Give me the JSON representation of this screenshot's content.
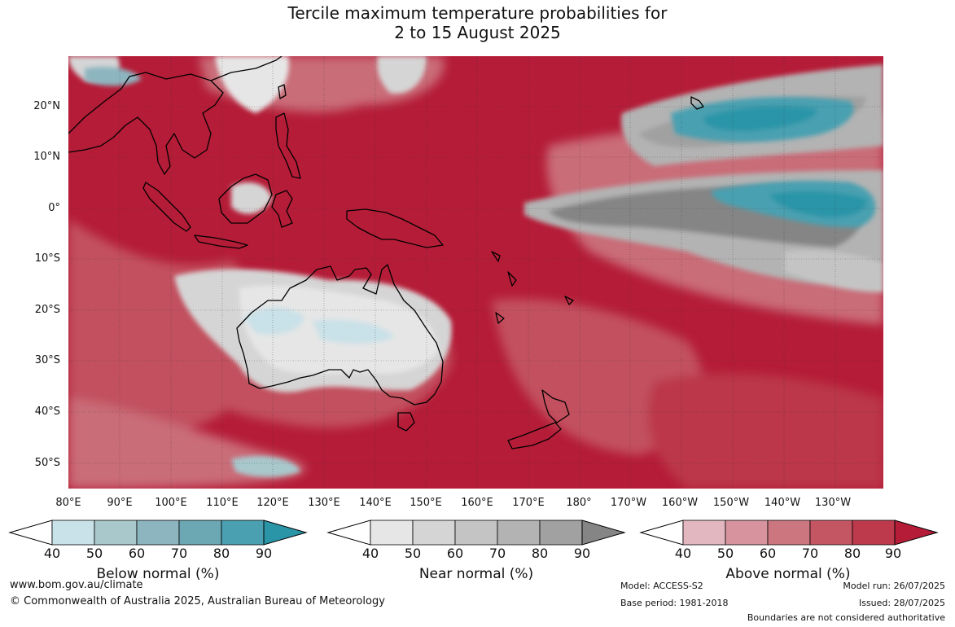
{
  "title": {
    "line1": "Tercile maximum temperature probabilities for",
    "line2": "2 to 15 August 2025"
  },
  "map": {
    "region": "Australia, Maritime Continent and western Pacific",
    "lat_labels": [
      "20°N",
      "10°N",
      "0°",
      "10°S",
      "20°S",
      "30°S",
      "40°S",
      "50°S"
    ],
    "lon_labels": [
      "80°E",
      "90°E",
      "100°E",
      "110°E",
      "120°E",
      "130°E",
      "140°E",
      "150°E",
      "160°E",
      "170°E",
      "180°",
      "170°W",
      "160°W",
      "150°W",
      "140°W",
      "130°W"
    ],
    "dominant_category": "Above normal",
    "colors": {
      "below": [
        "#c9e1e8",
        "#a8c8cc",
        "#8db5c0",
        "#6ba8b4",
        "#4aa0b1",
        "#2b95a8"
      ],
      "near": [
        "#e6e6e6",
        "#d5d5d5",
        "#c4c4c4",
        "#b3b3b3",
        "#a1a1a1",
        "#858585"
      ],
      "above": [
        "#e3b7c0",
        "#d7949e",
        "#cc7680",
        "#c45664",
        "#bc3a4c",
        "#b51c37"
      ]
    }
  },
  "legend": {
    "below": {
      "title": "Below normal (%)",
      "ticks": [
        "40",
        "50",
        "60",
        "70",
        "80",
        "90"
      ]
    },
    "near": {
      "title": "Near normal (%)",
      "ticks": [
        "40",
        "50",
        "60",
        "70",
        "80",
        "90"
      ]
    },
    "above": {
      "title": "Above normal (%)",
      "ticks": [
        "40",
        "50",
        "60",
        "70",
        "80",
        "90"
      ]
    }
  },
  "footer": {
    "url": "www.bom.gov.au/climate",
    "copyright": "© Commonwealth of Australia 2025, Australian Bureau of Meteorology",
    "model": "Model: ACCESS-S2",
    "base_period": "Base period: 1981-2018",
    "model_run": "Model run: 26/07/2025",
    "issued": "Issued: 28/07/2025",
    "boundaries": "Boundaries are not considered authoritative"
  }
}
